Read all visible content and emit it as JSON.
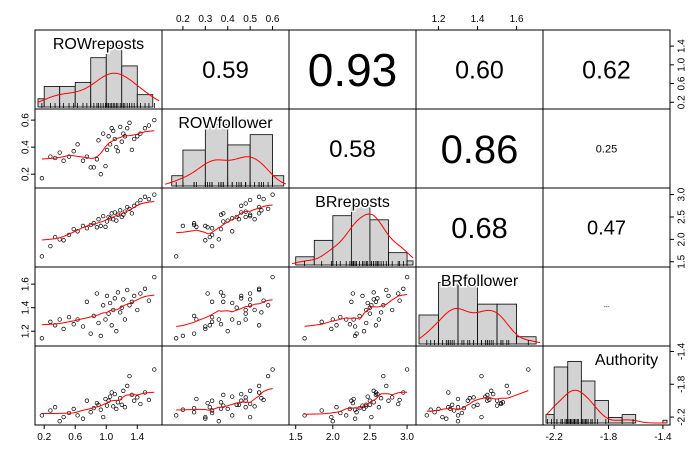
{
  "chart_data": {
    "type": "scatter-matrix",
    "title": "",
    "variables": [
      "ROWreposts",
      "ROWfollower",
      "BRreposts",
      "BRfollower",
      "Authority"
    ],
    "ranges": [
      [
        0.12,
        1.68
      ],
      [
        0.12,
        0.66
      ],
      [
        1.45,
        3.08
      ],
      [
        1.1,
        1.72
      ],
      [
        -2.26,
        -1.37
      ]
    ],
    "ticks": [
      [
        "0.2",
        "0.6",
        "1.0",
        "1.4"
      ],
      [
        "0.2",
        "0.4",
        "0.6"
      ],
      [
        "1.5",
        "2.0",
        "2.5",
        "3.0"
      ],
      [
        "1.2",
        "1.4",
        "1.6"
      ],
      [
        "-2.2",
        "-1.8",
        "-1.4"
      ]
    ],
    "top_axis_ticks": [
      [
        "0.2",
        "0.3",
        "0.4",
        "0.5",
        "0.6"
      ],
      [
        "1.2",
        "1.4",
        "1.6"
      ]
    ],
    "right_axis_ticks": [
      [
        "0.2",
        "0.6",
        "1.0",
        "1.4"
      ],
      [
        "1.5",
        "2.0",
        "2.5",
        "3.0"
      ],
      [
        "-2.2",
        "-1.8",
        "-1.4"
      ]
    ],
    "correlations": [
      {
        "row": 0,
        "col": 1,
        "text": "0.59",
        "size": 24
      },
      {
        "row": 0,
        "col": 2,
        "text": "0.93",
        "size": 46
      },
      {
        "row": 0,
        "col": 3,
        "text": "0.60",
        "size": 25
      },
      {
        "row": 0,
        "col": 4,
        "text": "0.62",
        "size": 25
      },
      {
        "row": 1,
        "col": 2,
        "text": "0.58",
        "size": 24
      },
      {
        "row": 1,
        "col": 3,
        "text": "0.86",
        "size": 40
      },
      {
        "row": 1,
        "col": 4,
        "text": "0.25",
        "size": 11
      },
      {
        "row": 2,
        "col": 3,
        "text": "0.68",
        "size": 29
      },
      {
        "row": 2,
        "col": 4,
        "text": "0.47",
        "size": 20
      },
      {
        "row": 3,
        "col": 4,
        "text": "---",
        "size": 6
      }
    ],
    "histograms": [
      {
        "breaks": [
          0.0,
          0.2,
          0.4,
          0.6,
          0.8,
          1.0,
          1.2,
          1.4,
          1.6
        ],
        "counts": [
          2,
          5,
          5,
          6,
          12,
          15,
          10,
          3
        ]
      },
      {
        "breaks": [
          0.15,
          0.2,
          0.3,
          0.4,
          0.5,
          0.6,
          0.65
        ],
        "counts": [
          2,
          7,
          12,
          8,
          10,
          2
        ]
      },
      {
        "breaks": [
          1.5,
          1.75,
          2.0,
          2.25,
          2.5,
          2.75,
          3.0,
          3.1
        ],
        "counts": [
          2,
          6,
          12,
          15,
          11,
          3,
          1
        ]
      },
      {
        "breaks": [
          1.1,
          1.2,
          1.3,
          1.4,
          1.5,
          1.6,
          1.7
        ],
        "counts": [
          8,
          17,
          16,
          11,
          11,
          2
        ]
      },
      {
        "breaks": [
          -2.3,
          -2.2,
          -2.1,
          -2.0,
          -1.9,
          -1.8,
          -1.7,
          -1.6,
          -1.5,
          -1.4,
          -1.3
        ],
        "counts": [
          3,
          20,
          22,
          15,
          8,
          2,
          3,
          0,
          0,
          1
        ]
      }
    ],
    "data": {
      "ROWreposts": [
        0.17,
        0.28,
        0.34,
        0.4,
        0.45,
        0.52,
        0.58,
        0.63,
        0.7,
        0.75,
        0.8,
        0.84,
        0.88,
        0.9,
        0.93,
        0.96,
        0.99,
        1.01,
        1.03,
        1.05,
        1.07,
        1.09,
        1.11,
        1.13,
        1.15,
        1.18,
        1.2,
        1.22,
        1.24,
        1.27,
        1.3,
        1.33,
        1.36,
        1.4,
        1.44,
        1.5,
        1.55,
        1.62
      ],
      "ROWfollower": [
        0.17,
        0.33,
        0.32,
        0.36,
        0.3,
        0.33,
        0.37,
        0.42,
        0.3,
        0.33,
        0.25,
        0.25,
        0.31,
        0.45,
        0.2,
        0.5,
        0.26,
        0.38,
        0.48,
        0.42,
        0.54,
        0.52,
        0.46,
        0.4,
        0.37,
        0.55,
        0.44,
        0.5,
        0.48,
        0.54,
        0.58,
        0.38,
        0.46,
        0.48,
        0.5,
        0.54,
        0.56,
        0.6
      ],
      "BRreposts": [
        1.62,
        1.85,
        2.05,
        2.0,
        1.98,
        2.1,
        2.23,
        2.18,
        2.3,
        2.25,
        2.32,
        2.36,
        2.27,
        2.45,
        2.3,
        2.52,
        2.28,
        2.4,
        2.5,
        2.47,
        2.58,
        2.45,
        2.6,
        2.42,
        2.55,
        2.65,
        2.5,
        2.55,
        2.62,
        2.72,
        2.68,
        2.58,
        2.75,
        2.8,
        2.88,
        2.95,
        2.9,
        3.0
      ],
      "BRfollower": [
        1.14,
        1.28,
        1.25,
        1.3,
        1.22,
        1.32,
        1.26,
        1.3,
        1.24,
        1.45,
        1.18,
        1.33,
        1.52,
        1.27,
        1.16,
        1.42,
        1.3,
        1.5,
        1.35,
        1.44,
        1.25,
        1.38,
        1.48,
        1.2,
        1.53,
        1.36,
        1.4,
        1.47,
        1.3,
        1.55,
        1.42,
        1.45,
        1.5,
        1.38,
        1.52,
        1.56,
        1.46,
        1.66
      ],
      "Authority": [
        -2.18,
        -2.12,
        -2.08,
        -2.25,
        -2.2,
        -2.15,
        -2.1,
        -2.18,
        -2.22,
        -2.0,
        -2.14,
        -2.09,
        -2.03,
        -2.05,
        -2.11,
        -2.2,
        -1.98,
        -2.06,
        -2.0,
        -1.95,
        -1.9,
        -2.07,
        -1.92,
        -2.1,
        -2.02,
        -1.97,
        -2.05,
        -1.88,
        -2.08,
        -1.82,
        -1.7,
        -1.93,
        -2.0,
        -1.96,
        -2.04,
        -1.9,
        -1.99,
        -1.62
      ]
    }
  }
}
